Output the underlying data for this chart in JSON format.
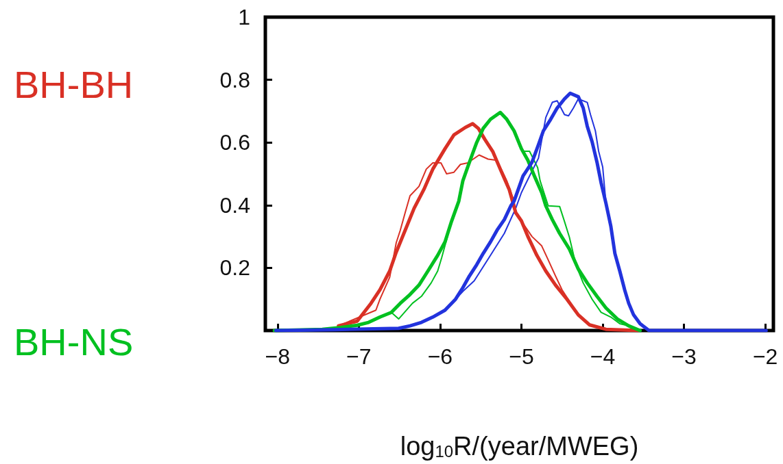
{
  "chart_data": {
    "type": "line",
    "xlabel": "log$_{10}$R/(year/MWEG)",
    "xlim": [
      -8.15,
      -1.9
    ],
    "xticks": [
      -8,
      -7,
      -6,
      -5,
      -4,
      -3,
      -2
    ],
    "ylim": [
      0,
      1
    ],
    "yticks": [
      {
        "value": 0,
        "label": null
      },
      0.2,
      0.4,
      0.6,
      0.8,
      1
    ],
    "grid": false,
    "legend": "left",
    "marker": "none",
    "line_style": "solid",
    "series": [
      {
        "name": "BH-BH",
        "color": "#d93025",
        "x": [
          -7.25,
          -7.02,
          -6.85,
          -6.74,
          -6.62,
          -6.54,
          -6.43,
          -6.32,
          -6.2,
          -6.09,
          -5.94,
          -5.83,
          -5.69,
          -5.6,
          -5.53,
          -5.45,
          -5.35,
          -5.26,
          -5.15,
          -5.07,
          -5.0,
          -4.92,
          -4.81,
          -4.7,
          -4.58,
          -4.44,
          -4.3,
          -4.16,
          -3.96,
          -3.56
        ],
        "values": [
          0.015,
          0.03,
          0.087,
          0.13,
          0.19,
          0.25,
          0.32,
          0.39,
          0.45,
          0.515,
          0.58,
          0.624,
          0.648,
          0.66,
          0.645,
          0.61,
          0.57,
          0.515,
          0.45,
          0.376,
          0.35,
          0.3,
          0.24,
          0.19,
          0.145,
          0.1,
          0.05,
          0.018,
          0.004,
          0
        ]
      },
      {
        "color": "#d93025",
        "x": [
          -7.25,
          -6.79,
          -6.74,
          -6.62,
          -6.54,
          -6.49,
          -6.43,
          -6.37,
          -6.26,
          -6.17,
          -6.09,
          -5.99,
          -5.92,
          -5.83,
          -5.75,
          -5.66,
          -5.52,
          -5.41,
          -5.3,
          -5.18,
          -5.09,
          -5.07,
          -4.87,
          -4.75,
          -4.67,
          -4.58,
          -4.5,
          -4.41,
          -4.3,
          -4.16,
          -3.96,
          -3.56
        ],
        "values": [
          0.015,
          0.065,
          0.1,
          0.17,
          0.28,
          0.32,
          0.376,
          0.43,
          0.46,
          0.515,
          0.535,
          0.535,
          0.5,
          0.505,
          0.53,
          0.535,
          0.56,
          0.547,
          0.543,
          0.478,
          0.413,
          0.376,
          0.3,
          0.27,
          0.225,
          0.174,
          0.13,
          0.094,
          0.05,
          0.018,
          0.004,
          0
        ]
      },
      {
        "name": "BH-NS",
        "color": "#00c020",
        "x": [
          -8.04,
          -7.45,
          -7.22,
          -7.02,
          -6.88,
          -6.74,
          -6.6,
          -6.49,
          -6.37,
          -6.26,
          -6.15,
          -6.03,
          -5.94,
          -5.86,
          -5.77,
          -5.72,
          -5.66,
          -5.6,
          -5.55,
          -5.47,
          -5.38,
          -5.26,
          -5.18,
          -5.09,
          -5.0,
          -4.92,
          -4.84,
          -4.75,
          -4.7,
          -4.62,
          -4.53,
          -4.41,
          -4.3,
          -4.19,
          -4.07,
          -3.96,
          -3.82,
          -3.68,
          -3.54
        ],
        "values": [
          0,
          0.004,
          0.01,
          0.017,
          0.026,
          0.043,
          0.058,
          0.087,
          0.115,
          0.145,
          0.19,
          0.24,
          0.283,
          0.348,
          0.413,
          0.478,
          0.522,
          0.565,
          0.6,
          0.645,
          0.674,
          0.696,
          0.674,
          0.637,
          0.58,
          0.543,
          0.493,
          0.44,
          0.398,
          0.354,
          0.31,
          0.26,
          0.196,
          0.152,
          0.109,
          0.072,
          0.037,
          0.015,
          0
        ]
      },
      {
        "color": "#00c020",
        "x": [
          -8.04,
          -7.45,
          -7.22,
          -7.02,
          -6.88,
          -6.74,
          -6.6,
          -6.51,
          -6.34,
          -6.23,
          -6.11,
          -6.03,
          -5.98,
          -5.92,
          -5.86,
          -5.77,
          -5.72,
          -5.66,
          -5.6,
          -5.55,
          -5.47,
          -5.38,
          -5.26,
          -5.18,
          -5.09,
          -4.98,
          -4.9,
          -4.8,
          -4.77,
          -4.67,
          -4.53,
          -4.47,
          -4.41,
          -4.33,
          -4.24,
          -4.13,
          -4.02,
          -3.9,
          -3.79,
          -3.68,
          -3.54
        ],
        "values": [
          0,
          0.004,
          0.01,
          0.017,
          0.026,
          0.043,
          0.058,
          0.037,
          0.087,
          0.109,
          0.152,
          0.19,
          0.233,
          0.29,
          0.354,
          0.413,
          0.478,
          0.522,
          0.565,
          0.6,
          0.645,
          0.674,
          0.696,
          0.674,
          0.637,
          0.572,
          0.572,
          0.52,
          0.478,
          0.398,
          0.396,
          0.348,
          0.298,
          0.21,
          0.152,
          0.1,
          0.058,
          0.043,
          0.022,
          0.015,
          0
        ]
      },
      {
        "color": "#2233dd",
        "x": [
          -8.02,
          -7.3,
          -6.51,
          -6.37,
          -6.23,
          -6.09,
          -5.94,
          -5.81,
          -5.72,
          -5.64,
          -5.55,
          -5.47,
          -5.38,
          -5.3,
          -5.21,
          -5.13,
          -5.09,
          -4.98,
          -4.87,
          -4.79,
          -4.73,
          -4.64,
          -4.56,
          -4.47,
          -4.4,
          -4.3,
          -4.24,
          -4.19,
          -4.13,
          -4.07,
          -4.02,
          -3.96,
          -3.9,
          -3.85,
          -3.79,
          -3.73,
          -3.68,
          -3.62,
          -3.54,
          -3.43,
          -1.99
        ],
        "values": [
          0,
          0.003,
          0.007,
          0.015,
          0.026,
          0.043,
          0.065,
          0.1,
          0.137,
          0.174,
          0.21,
          0.246,
          0.283,
          0.32,
          0.354,
          0.398,
          0.413,
          0.493,
          0.537,
          0.593,
          0.637,
          0.674,
          0.71,
          0.739,
          0.757,
          0.746,
          0.71,
          0.652,
          0.602,
          0.537,
          0.472,
          0.406,
          0.333,
          0.246,
          0.19,
          0.13,
          0.087,
          0.05,
          0.022,
          0,
          0
        ]
      },
      {
        "color": "#2233dd",
        "x": [
          -8.02,
          -7.3,
          -6.51,
          -6.37,
          -6.23,
          -6.09,
          -5.94,
          -5.81,
          -5.72,
          -5.58,
          -5.38,
          -5.21,
          -5.07,
          -5.0,
          -4.9,
          -4.79,
          -4.7,
          -4.62,
          -4.56,
          -4.47,
          -4.42,
          -4.36,
          -4.3,
          -4.19,
          -4.15,
          -4.09,
          -4.05,
          -4.0,
          -3.96,
          -3.9,
          -3.85,
          -3.79,
          -3.73,
          -3.68,
          -3.62,
          -3.54,
          -3.43,
          -1.99
        ],
        "values": [
          0,
          0.003,
          0.007,
          0.015,
          0.026,
          0.043,
          0.065,
          0.1,
          0.125,
          0.159,
          0.24,
          0.31,
          0.39,
          0.44,
          0.493,
          0.55,
          0.68,
          0.728,
          0.733,
          0.689,
          0.685,
          0.71,
          0.739,
          0.728,
          0.689,
          0.637,
          0.572,
          0.522,
          0.406,
          0.333,
          0.246,
          0.19,
          0.13,
          0.087,
          0.05,
          0.022,
          0,
          0
        ]
      }
    ]
  }
}
